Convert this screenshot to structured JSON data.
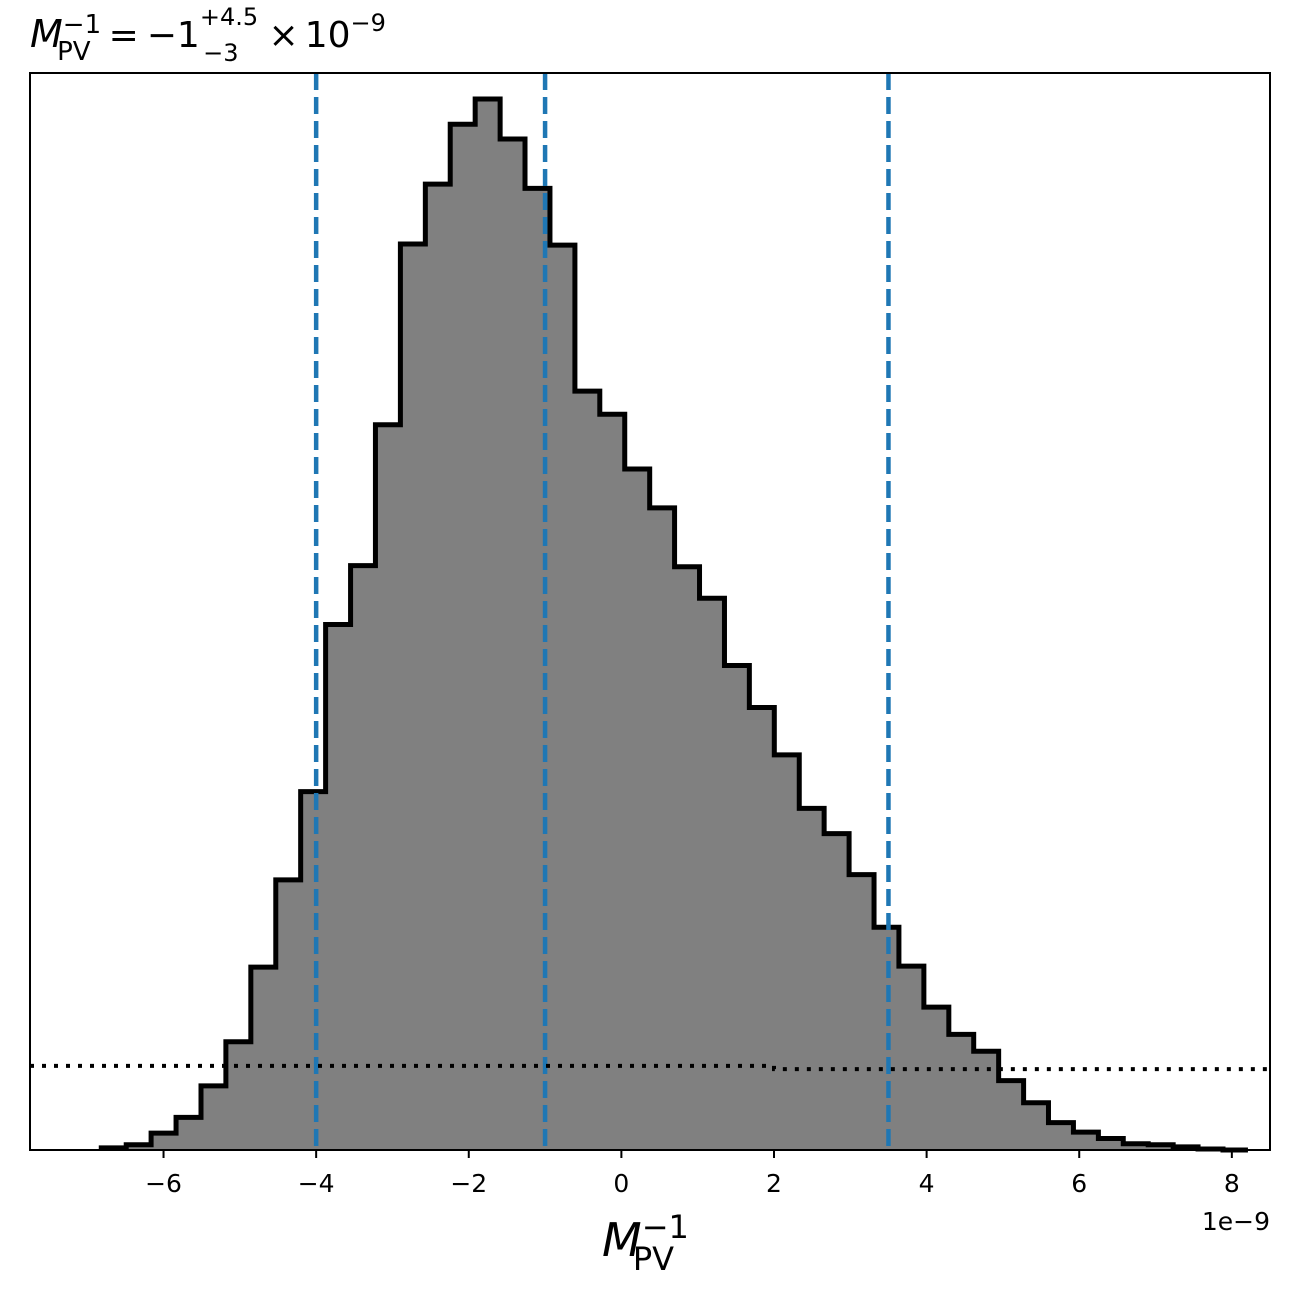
{
  "chart_data": {
    "type": "histogram",
    "title": {
      "symbol": "M",
      "subscript": "PV",
      "superscript": "−1",
      "equals": "=",
      "median": "−1",
      "upper_err": "+4.5",
      "lower_err": "−3",
      "times": "×",
      "power_base": "10",
      "power_exp": "−9"
    },
    "xlabel": {
      "symbol": "M",
      "subscript": "PV",
      "superscript": "−1"
    },
    "offset_text": "1e−9",
    "x_scale_factor": 1e-09,
    "xlim": [
      -7.75,
      8.5
    ],
    "ylim": [
      0,
      1.0
    ],
    "y_ticks_shown": false,
    "x_ticks": [
      -6,
      -4,
      -2,
      0,
      2,
      4,
      6,
      8
    ],
    "x_tick_labels": [
      "−6",
      "−4",
      "−2",
      "0",
      "2",
      "4",
      "6",
      "8"
    ],
    "bin_edges": [
      -6.816,
      -6.489,
      -6.163,
      -5.836,
      -5.509,
      -5.183,
      -4.856,
      -4.529,
      -4.203,
      -3.876,
      -3.549,
      -3.223,
      -2.896,
      -2.569,
      -2.243,
      -1.916,
      -1.589,
      -1.263,
      -0.936,
      -0.609,
      -0.283,
      0.044,
      0.371,
      0.697,
      1.024,
      1.351,
      1.677,
      2.004,
      2.331,
      2.657,
      2.984,
      3.311,
      3.637,
      3.964,
      4.291,
      4.617,
      4.944,
      5.271,
      5.597,
      5.924,
      6.251,
      6.577,
      6.904,
      7.231,
      7.557,
      7.884,
      8.211
    ],
    "counts": [
      0.002,
      0.005,
      0.016,
      0.031,
      0.061,
      0.103,
      0.174,
      0.257,
      0.341,
      0.5,
      0.556,
      0.69,
      0.862,
      0.919,
      0.976,
      1.0,
      0.962,
      0.915,
      0.861,
      0.722,
      0.7,
      0.648,
      0.611,
      0.555,
      0.525,
      0.461,
      0.421,
      0.376,
      0.325,
      0.301,
      0.262,
      0.212,
      0.175,
      0.136,
      0.11,
      0.094,
      0.066,
      0.045,
      0.026,
      0.017,
      0.011,
      0.006,
      0.005,
      0.003,
      0.001,
      0.0
    ],
    "fill_color": "#808080",
    "edge_color": "#000000",
    "vlines": [
      {
        "x": -4.0,
        "color": "#1f77b4",
        "style": "dashed"
      },
      {
        "x": -1.0,
        "color": "#1f77b4",
        "style": "dashed"
      },
      {
        "x": 3.5,
        "color": "#1f77b4",
        "style": "dashed"
      }
    ],
    "prior_line": {
      "x": [
        -7.75,
        2.0,
        2.0,
        8.5
      ],
      "y": [
        0.08,
        0.08,
        0.077,
        0.077
      ],
      "color": "#000000",
      "style": "dotted"
    }
  }
}
